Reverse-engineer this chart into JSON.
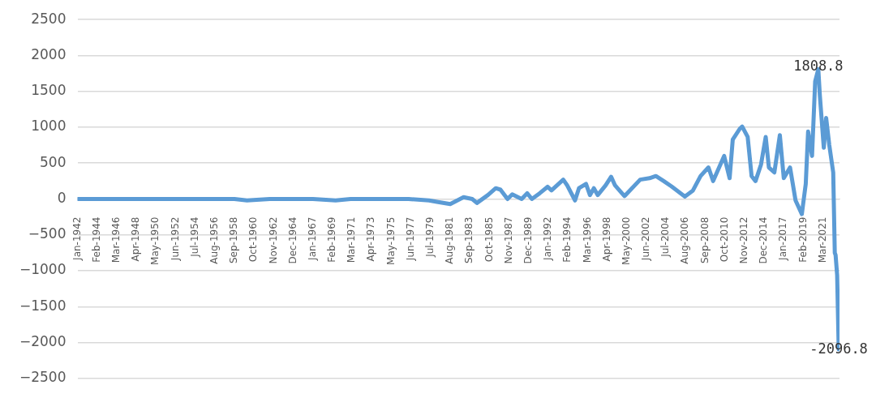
{
  "chart_data": {
    "type": "line",
    "x": [
      "1942-01",
      "1946-03",
      "1950-05",
      "1954-07",
      "1958-09",
      "1960-01",
      "1962-06",
      "1967-01",
      "1969-06",
      "1971-01",
      "1971-08",
      "1975-05",
      "1977-03",
      "1979-05",
      "1980-03",
      "1981-08",
      "1983-01",
      "1983-12",
      "1984-06",
      "1985-08",
      "1986-06",
      "1986-12",
      "1987-09",
      "1988-03",
      "1989-03",
      "1989-10",
      "1990-04",
      "1991-02",
      "1991-12",
      "1992-05",
      "1993-08",
      "1994-01",
      "1994-11",
      "1995-04",
      "1996-01",
      "1996-06",
      "1996-11",
      "1997-04",
      "1998-02",
      "1998-09",
      "1999-02",
      "2000-02",
      "2001-10",
      "2002-10",
      "2003-06",
      "2004-04",
      "2005-02",
      "2006-07",
      "2007-05",
      "2008-03",
      "2009-01",
      "2009-07",
      "2010-09",
      "2011-04",
      "2011-08",
      "2012-05",
      "2012-08",
      "2013-03",
      "2013-08",
      "2014-01",
      "2014-08",
      "2015-02",
      "2015-06",
      "2016-01",
      "2016-08",
      "2017-01",
      "2017-09",
      "2018-04",
      "2018-12",
      "2019-05",
      "2019-08",
      "2020-01",
      "2020-05",
      "2020-09",
      "2020-11",
      "2021-04",
      "2021-07",
      "2021-11",
      "2022-04",
      "2022-06",
      "2022-07",
      "2022-09",
      "2022-11",
      "2022-12"
    ],
    "series": [
      {
        "color": "#5b9bd5",
        "values": [
          0,
          0,
          0,
          0,
          0,
          -20,
          0,
          0,
          -20,
          0,
          0,
          0,
          0,
          -20,
          -40,
          -70,
          25,
          0,
          -55,
          55,
          150,
          130,
          0,
          65,
          0,
          80,
          0,
          80,
          170,
          120,
          270,
          190,
          -20,
          150,
          210,
          55,
          150,
          55,
          190,
          310,
          190,
          40,
          270,
          290,
          320,
          250,
          175,
          35,
          115,
          320,
          440,
          250,
          600,
          290,
          830,
          980,
          1010,
          865,
          320,
          250,
          480,
          865,
          440,
          370,
          890,
          290,
          440,
          -20,
          -210,
          210,
          940,
          600,
          1640,
          1808.8,
          1440,
          715,
          1130,
          750,
          370,
          -750,
          -780,
          -1060,
          -2096.8,
          -1500
        ]
      }
    ],
    "xlim": [
      "1942-01",
      "2022-12"
    ],
    "xticks": [
      {
        "value": "1942-01",
        "label": "Jan-1942"
      },
      {
        "value": "1944-02",
        "label": "Feb-1944"
      },
      {
        "value": "1946-03",
        "label": "Mar-1946"
      },
      {
        "value": "1948-04",
        "label": "Apr-1948"
      },
      {
        "value": "1950-05",
        "label": "May-1950"
      },
      {
        "value": "1952-06",
        "label": "Jun-1952"
      },
      {
        "value": "1954-07",
        "label": "Jul-1954"
      },
      {
        "value": "1956-08",
        "label": "Aug-1956"
      },
      {
        "value": "1958-09",
        "label": "Sep-1958"
      },
      {
        "value": "1960-10",
        "label": "Oct-1960"
      },
      {
        "value": "1962-11",
        "label": "Nov-1962"
      },
      {
        "value": "1964-12",
        "label": "Dec-1964"
      },
      {
        "value": "1967-01",
        "label": "Jan-1967"
      },
      {
        "value": "1969-02",
        "label": "Feb-1969"
      },
      {
        "value": "1971-03",
        "label": "Mar-1971"
      },
      {
        "value": "1973-04",
        "label": "Apr-1973"
      },
      {
        "value": "1975-05",
        "label": "May-1975"
      },
      {
        "value": "1977-06",
        "label": "Jun-1977"
      },
      {
        "value": "1979-07",
        "label": "Jul-1979"
      },
      {
        "value": "1981-08",
        "label": "Aug-1981"
      },
      {
        "value": "1983-09",
        "label": "Sep-1983"
      },
      {
        "value": "1985-10",
        "label": "Oct-1985"
      },
      {
        "value": "1987-11",
        "label": "Nov-1987"
      },
      {
        "value": "1989-12",
        "label": "Dec-1989"
      },
      {
        "value": "1992-01",
        "label": "Jan-1992"
      },
      {
        "value": "1994-02",
        "label": "Feb-1994"
      },
      {
        "value": "1996-03",
        "label": "Mar-1996"
      },
      {
        "value": "1998-04",
        "label": "Apr-1998"
      },
      {
        "value": "2000-05",
        "label": "May-2000"
      },
      {
        "value": "2002-06",
        "label": "Jun-2002"
      },
      {
        "value": "2004-07",
        "label": "Jul-2004"
      },
      {
        "value": "2006-08",
        "label": "Aug-2006"
      },
      {
        "value": "2008-09",
        "label": "Sep-2008"
      },
      {
        "value": "2010-10",
        "label": "Oct-2010"
      },
      {
        "value": "2012-11",
        "label": "Nov-2012"
      },
      {
        "value": "2014-12",
        "label": "Dec-2014"
      },
      {
        "value": "2017-01",
        "label": "Jan-2017"
      },
      {
        "value": "2019-02",
        "label": "Feb-2019"
      },
      {
        "value": "2021-03",
        "label": "Mar-2021"
      }
    ],
    "ylim": [
      -2500,
      2500
    ],
    "yticks": [
      -2500,
      -2000,
      -1500,
      -1000,
      -500,
      0,
      500,
      1000,
      1500,
      2000,
      2500
    ],
    "grid": "y",
    "marker": "none",
    "line_style": "solid",
    "annotations": [
      {
        "text": "1808.8",
        "x": "2020-09",
        "y": 1808.8
      },
      {
        "text": "-2096.8",
        "x": "2022-11",
        "y": -2096.8
      }
    ]
  }
}
